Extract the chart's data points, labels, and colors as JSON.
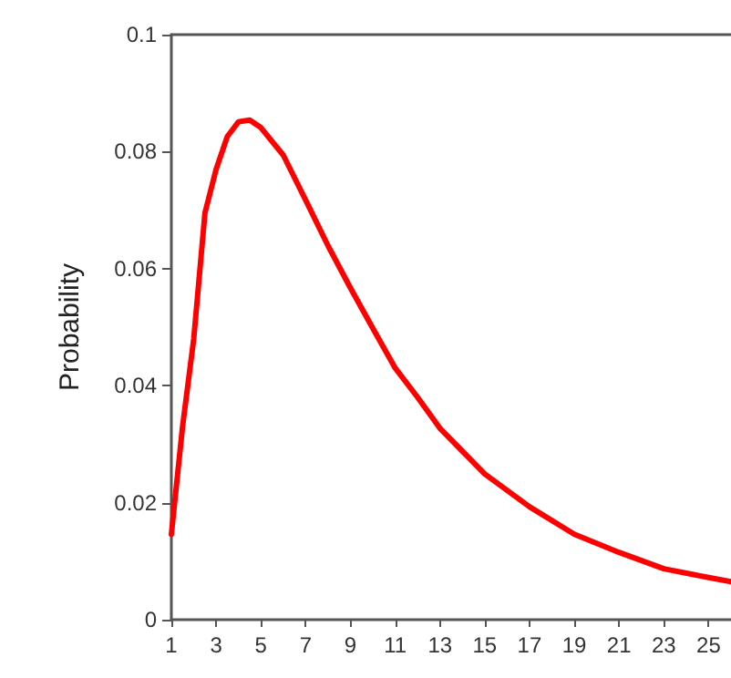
{
  "chart_data": {
    "type": "line",
    "ylabel": "Probability",
    "x": [
      1,
      1.5,
      2,
      2.5,
      3,
      3.5,
      4,
      4.5,
      5,
      6,
      7,
      8,
      9,
      10,
      11,
      12,
      13,
      15,
      17,
      19,
      21,
      23,
      25,
      26
    ],
    "series": [
      {
        "color": "#ff0000",
        "values": [
          0.0146,
          0.033,
          0.048,
          0.0695,
          0.077,
          0.0826,
          0.0851,
          0.0854,
          0.0841,
          0.0794,
          0.0717,
          0.0639,
          0.0567,
          0.0498,
          0.043,
          0.038,
          0.0327,
          0.0249,
          0.0193,
          0.0146,
          0.0115,
          0.0087,
          0.0072,
          0.0065
        ]
      }
    ],
    "xlim": [
      1,
      26
    ],
    "xticks": [
      1,
      3,
      5,
      7,
      9,
      11,
      13,
      15,
      17,
      19,
      21,
      23,
      25
    ],
    "ylim": [
      0,
      0.1
    ],
    "yticks": [
      0,
      0.02,
      0.04,
      0.06,
      0.08,
      0.1
    ],
    "grid": false,
    "marker": "none",
    "line_style": "solid"
  }
}
